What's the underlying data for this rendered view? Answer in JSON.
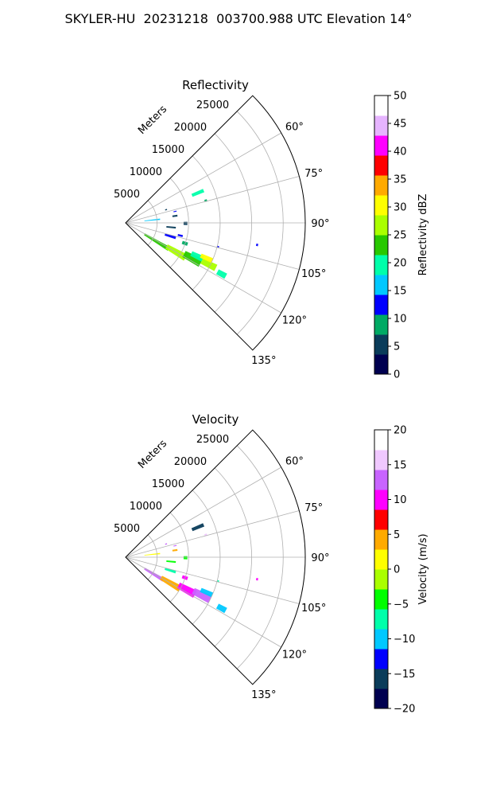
{
  "figure": {
    "suptitle": "SKYLER-HU  20231218  003700.988 UTC Elevation 14°"
  },
  "chart_data": [
    {
      "type": "heatmap",
      "projection": "polar-sector",
      "title": "Reflectivity",
      "range_label": "Meters",
      "range_ticks": [
        5000,
        10000,
        15000,
        20000,
        25000
      ],
      "range_tick_labels": [
        "5000",
        "10000",
        "15000",
        "20000",
        "25000"
      ],
      "range_max": 28500,
      "azimuth_range_deg": [
        45,
        135
      ],
      "azimuth_ticks_deg": [
        45,
        60,
        75,
        90,
        105,
        120,
        135
      ],
      "azimuth_tick_labels": [
        "60°",
        "75°",
        "90°",
        "105°",
        "120°",
        "135°"
      ],
      "grid": true,
      "colorbar": {
        "label": "Reflectivity dBZ",
        "min": 0,
        "max": 50,
        "ticks": [
          0,
          5,
          10,
          15,
          20,
          25,
          30,
          35,
          40,
          45,
          50
        ],
        "tick_labels": [
          "0",
          "5",
          "10",
          "15",
          "20",
          "25",
          "30",
          "35",
          "40",
          "45",
          "50"
        ],
        "colors": [
          "#000050",
          "#0a3c5a",
          "#00aa64",
          "#0000ff",
          "#00c8ff",
          "#00ffaa",
          "#28c800",
          "#aaff00",
          "#ffff00",
          "#ffaa00",
          "#ff0000",
          "#ff00ff",
          "#e6b4ff",
          "#ffffff"
        ]
      },
      "echoes": [
        {
          "az": 121.0,
          "r": 3500,
          "dr": 4500,
          "daz": 5,
          "value": 22
        },
        {
          "az": 120.0,
          "r": 7500,
          "dr": 3500,
          "daz": 6,
          "value": 25
        },
        {
          "az": 118.0,
          "r": 10500,
          "dr": 3000,
          "daz": 6,
          "value": 24
        },
        {
          "az": 115.0,
          "r": 11500,
          "dr": 2000,
          "daz": 4,
          "value": 18
        },
        {
          "az": 116.5,
          "r": 13500,
          "dr": 2500,
          "daz": 4,
          "value": 27
        },
        {
          "az": 113.5,
          "r": 13000,
          "dr": 2000,
          "daz": 3,
          "value": 30
        },
        {
          "az": 118.0,
          "r": 16500,
          "dr": 1500,
          "daz": 3,
          "value": 19
        },
        {
          "az": 106.5,
          "r": 6500,
          "dr": 1800,
          "daz": 3,
          "value": 14
        },
        {
          "az": 103.0,
          "r": 8500,
          "dr": 800,
          "daz": 2,
          "value": 12
        },
        {
          "az": 109.0,
          "r": 9500,
          "dr": 900,
          "daz": 3,
          "value": 8
        },
        {
          "az": 95.5,
          "r": 6500,
          "dr": 1500,
          "daz": 2,
          "value": 7
        },
        {
          "az": 84.0,
          "r": 3000,
          "dr": 2500,
          "daz": 2,
          "value": 16
        },
        {
          "az": 82.0,
          "r": 7500,
          "dr": 800,
          "daz": 2,
          "value": 6
        },
        {
          "az": 77.0,
          "r": 7800,
          "dr": 500,
          "daz": 1,
          "value": 12
        },
        {
          "az": 67.5,
          "r": 11400,
          "dr": 2000,
          "daz": 2.5,
          "value": 20
        },
        {
          "az": 72.0,
          "r": 6600,
          "dr": 300,
          "daz": 1.5,
          "value": 5
        },
        {
          "az": 74.5,
          "r": 13000,
          "dr": 400,
          "daz": 1.5,
          "value": 10
        },
        {
          "az": 99.5,
          "r": 21000,
          "dr": 300,
          "daz": 1,
          "value": 12
        },
        {
          "az": 104.5,
          "r": 15000,
          "dr": 300,
          "daz": 1,
          "value": 13
        },
        {
          "az": 90.5,
          "r": 9200,
          "dr": 600,
          "daz": 3,
          "value": 7
        }
      ]
    },
    {
      "type": "heatmap",
      "projection": "polar-sector",
      "title": "Velocity",
      "range_label": "Meters",
      "range_ticks": [
        5000,
        10000,
        15000,
        20000,
        25000
      ],
      "range_tick_labels": [
        "5000",
        "10000",
        "15000",
        "20000",
        "25000"
      ],
      "range_max": 28500,
      "azimuth_range_deg": [
        45,
        135
      ],
      "azimuth_ticks_deg": [
        45,
        60,
        75,
        90,
        105,
        120,
        135
      ],
      "azimuth_tick_labels": [
        "60°",
        "75°",
        "90°",
        "105°",
        "120°",
        "135°"
      ],
      "grid": true,
      "colorbar": {
        "label": "Velocity (m/s)",
        "min": -20,
        "max": 20,
        "ticks": [
          -20,
          -15,
          -10,
          -5,
          0,
          5,
          10,
          15,
          20
        ],
        "tick_labels": [
          "−20",
          "−15",
          "−10",
          "−5",
          "0",
          "5",
          "10",
          "15",
          "20"
        ],
        "colors": [
          "#000050",
          "#0a3c5a",
          "#0000ff",
          "#00c8ff",
          "#00ffaa",
          "#00ff00",
          "#aaff00",
          "#ffff00",
          "#ffaa00",
          "#ff0000",
          "#ff00ff",
          "#c864ff",
          "#f0c8ff",
          "#ffffff"
        ]
      },
      "echoes": [
        {
          "az": 121.0,
          "r": 3500,
          "dr": 3500,
          "daz": 5,
          "value": 14
        },
        {
          "az": 120.0,
          "r": 6500,
          "dr": 3500,
          "daz": 6,
          "value": 4
        },
        {
          "az": 118.0,
          "r": 9500,
          "dr": 3000,
          "daz": 6,
          "value": 10
        },
        {
          "az": 116.5,
          "r": 12000,
          "dr": 3000,
          "daz": 5,
          "value": 14
        },
        {
          "az": 113.5,
          "r": 13000,
          "dr": 2000,
          "daz": 3,
          "value": -11
        },
        {
          "az": 118.0,
          "r": 16500,
          "dr": 1500,
          "daz": 3,
          "value": -11
        },
        {
          "az": 106.5,
          "r": 6500,
          "dr": 1800,
          "daz": 3,
          "value": -6
        },
        {
          "az": 109.0,
          "r": 9500,
          "dr": 900,
          "daz": 3,
          "value": 10
        },
        {
          "az": 95.5,
          "r": 6500,
          "dr": 1500,
          "daz": 2,
          "value": -5
        },
        {
          "az": 84.0,
          "r": 3000,
          "dr": 2500,
          "daz": 2,
          "value": 2
        },
        {
          "az": 82.0,
          "r": 7500,
          "dr": 800,
          "daz": 2,
          "value": 4
        },
        {
          "az": 77.0,
          "r": 7800,
          "dr": 500,
          "daz": 1,
          "value": 12
        },
        {
          "az": 67.5,
          "r": 11400,
          "dr": 2000,
          "daz": 2.5,
          "value": -15
        },
        {
          "az": 72.0,
          "r": 6600,
          "dr": 300,
          "daz": 1.5,
          "value": 14
        },
        {
          "az": 74.5,
          "r": 13000,
          "dr": 400,
          "daz": 1.5,
          "value": 16
        },
        {
          "az": 99.5,
          "r": 21000,
          "dr": 300,
          "daz": 1,
          "value": 10
        },
        {
          "az": 104.5,
          "r": 15000,
          "dr": 300,
          "daz": 1,
          "value": -8
        },
        {
          "az": 90.5,
          "r": 9200,
          "dr": 600,
          "daz": 3,
          "value": -4
        }
      ]
    }
  ]
}
